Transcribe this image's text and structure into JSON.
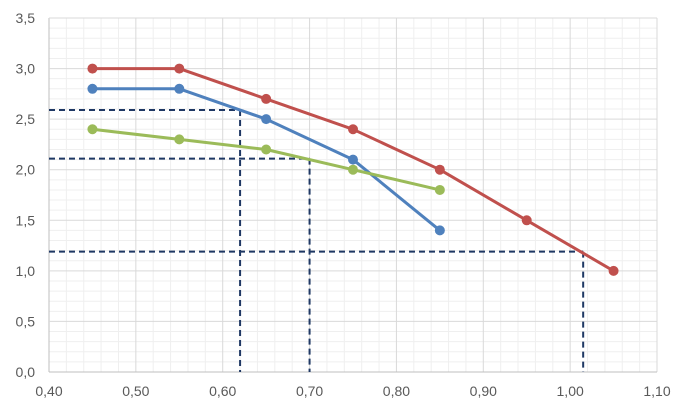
{
  "chart_data": {
    "type": "line",
    "title": "",
    "xlabel": "",
    "ylabel": "",
    "xlim": [
      0.4,
      1.1
    ],
    "ylim": [
      0.0,
      3.5
    ],
    "x_ticks": [
      "0,40",
      "0,50",
      "0,60",
      "0,70",
      "0,80",
      "0,90",
      "1,00",
      "1,10"
    ],
    "y_ticks": [
      "0,0",
      "0,5",
      "1,0",
      "1,5",
      "2,0",
      "2,5",
      "3,0",
      "3,5"
    ],
    "grid": "major and minor",
    "legend": "none",
    "series": [
      {
        "color": "#C0504D",
        "x": [
          0.45,
          0.55,
          0.65,
          0.75,
          0.85,
          0.95,
          1.05
        ],
        "y": [
          3.0,
          3.0,
          2.7,
          2.4,
          2.0,
          1.5,
          1.0
        ]
      },
      {
        "color": "#4F81BD",
        "x": [
          0.45,
          0.55,
          0.65,
          0.75,
          0.85
        ],
        "y": [
          2.8,
          2.8,
          2.5,
          2.1,
          1.4
        ]
      },
      {
        "color": "#9BBB59",
        "x": [
          0.45,
          0.55,
          0.65,
          0.75,
          0.85
        ],
        "y": [
          2.4,
          2.3,
          2.2,
          2.0,
          1.8
        ]
      }
    ],
    "reference_lines": [
      {
        "color": "#1F3864",
        "x": 0.62,
        "y": 2.59
      },
      {
        "color": "#1F3864",
        "x": 0.7,
        "y": 2.11
      },
      {
        "color": "#1F3864",
        "x": 1.015,
        "y": 1.19
      }
    ]
  }
}
